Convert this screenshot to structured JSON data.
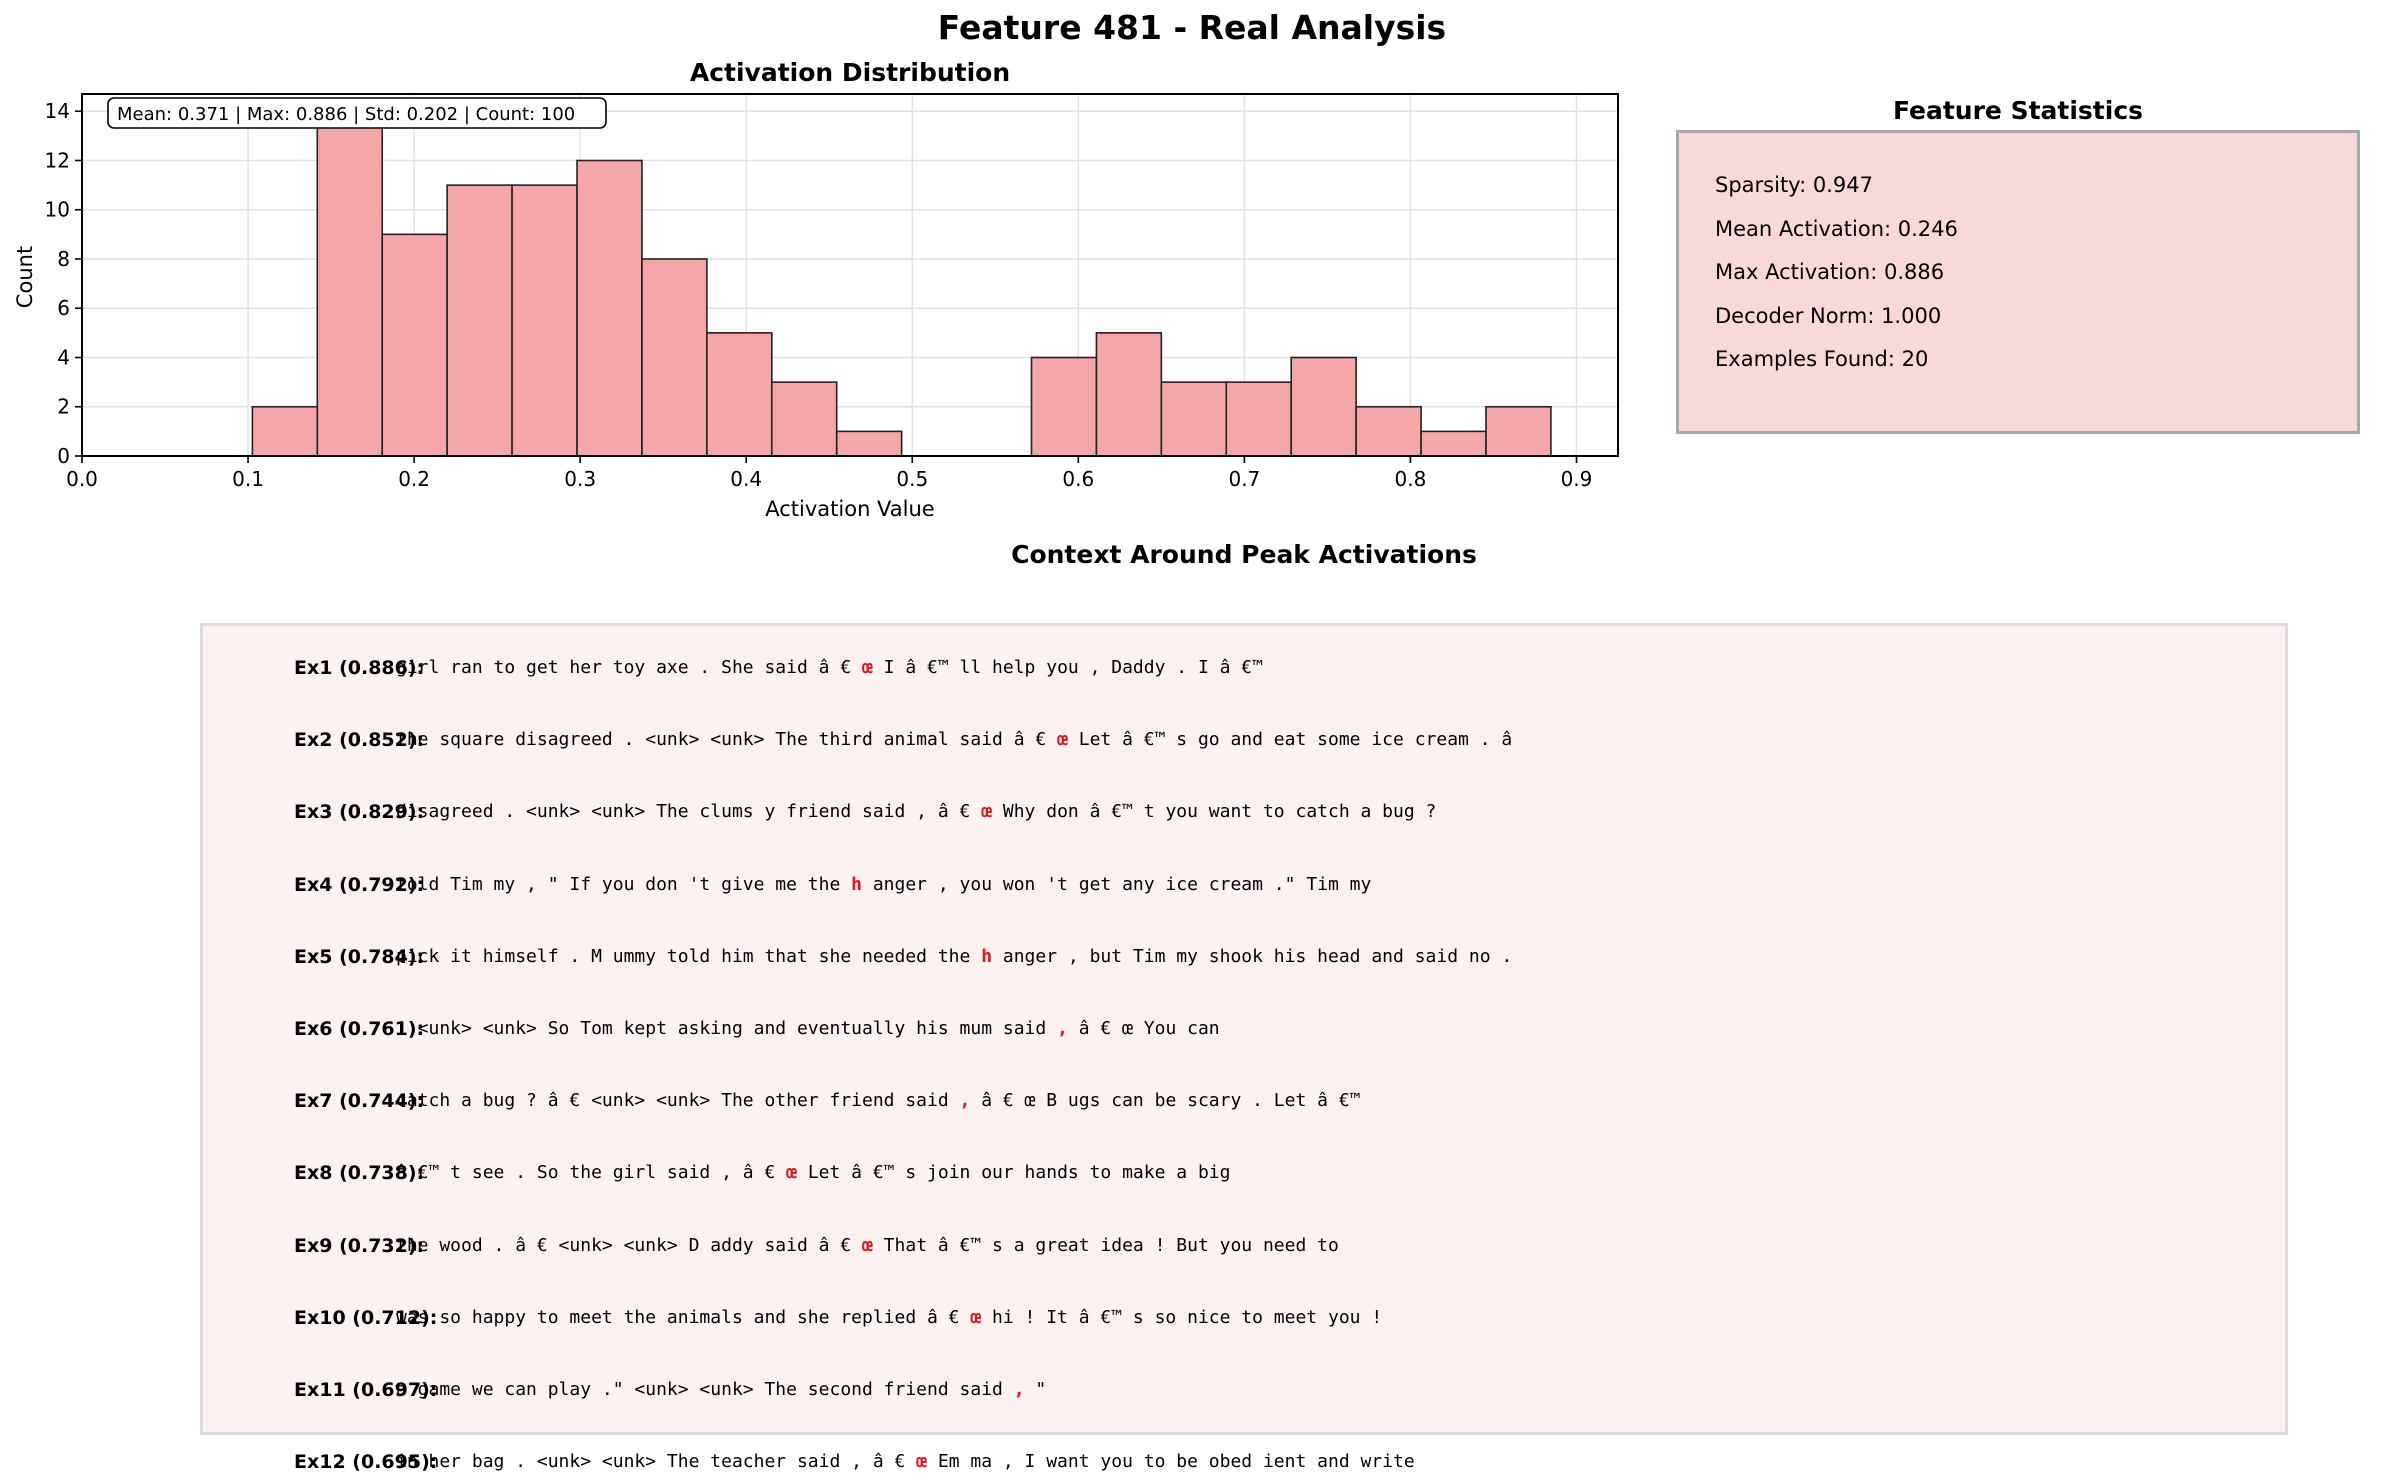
{
  "figure_title": "Feature 481 - Real Analysis",
  "chart_data": {
    "type": "bar",
    "title": "Activation Distribution",
    "xlabel": "Activation Value",
    "ylabel": "Count",
    "xlim": [
      0.0,
      0.925
    ],
    "ylim": [
      0,
      14.7
    ],
    "xticks": [
      0.0,
      0.1,
      0.2,
      0.3,
      0.4,
      0.5,
      0.6,
      0.7,
      0.8,
      0.9
    ],
    "xtick_labels": [
      "0.0",
      "0.1",
      "0.2",
      "0.3",
      "0.4",
      "0.5",
      "0.6",
      "0.7",
      "0.8",
      "0.9"
    ],
    "yticks": [
      0,
      2,
      4,
      6,
      8,
      10,
      12,
      14
    ],
    "ytick_labels": [
      "0",
      "2",
      "4",
      "6",
      "8",
      "10",
      "12",
      "14"
    ],
    "grid": true,
    "bin_edges": [
      0.1026,
      0.1417,
      0.1808,
      0.2199,
      0.259,
      0.2981,
      0.3372,
      0.3763,
      0.4154,
      0.4545,
      0.4936,
      0.5327,
      0.5718,
      0.6109,
      0.65,
      0.6891,
      0.7282,
      0.7673,
      0.8064,
      0.8455,
      0.8846
    ],
    "values": [
      2,
      14,
      9,
      11,
      11,
      12,
      8,
      5,
      3,
      1,
      0,
      0,
      4,
      5,
      3,
      3,
      4,
      2,
      1,
      2
    ],
    "bar_color": "#f4a6a8",
    "edge_color": "#222222",
    "annotation": "Mean: 0.371 | Max: 0.886 | Std: 0.202 | Count: 100"
  },
  "stats": {
    "title": "Feature Statistics",
    "lines": [
      "Sparsity: 0.947",
      "Mean Activation: 0.246",
      "Max Activation: 0.886",
      "Decoder Norm: 1.000",
      "Examples Found: 20"
    ]
  },
  "context": {
    "title": "Context Around Peak Activations",
    "highlight_color": "#e0141e",
    "examples": [
      {
        "label": "Ex1 (0.886):",
        "before": "girl ran to get her toy axe . She said â € ",
        "token": "œ",
        "after": " I â €™ ll help you , Daddy . I â €™"
      },
      {
        "label": "Ex2 (0.852):",
        "before": "the square disagreed . <unk> <unk> The third animal said â € ",
        "token": "œ",
        "after": " Let â €™ s go and eat some ice cream . â"
      },
      {
        "label": "Ex3 (0.829):",
        "before": "disagreed . <unk> <unk> The clums y friend said , â € ",
        "token": "œ",
        "after": " Why don â €™ t you want to catch a bug ?"
      },
      {
        "label": "Ex4 (0.792):",
        "before": "told Tim my , \" If you don 't give me the ",
        "token": "h",
        "after": " anger , you won 't get any ice cream .\" Tim my"
      },
      {
        "label": "Ex5 (0.784):",
        "before": "pick it himself . M ummy told him that she needed the ",
        "token": "h",
        "after": " anger , but Tim my shook his head and said no ."
      },
      {
        "label": "Ex6 (0.761):",
        "before": "! <unk> <unk> So Tom kept asking and eventually his mum said ",
        "token": ",",
        "after": " â € œ You can"
      },
      {
        "label": "Ex7 (0.744):",
        "before": "catch a bug ? â € <unk> <unk> The other friend said ",
        "token": ",",
        "after": " â € œ B ugs can be scary . Let â €™"
      },
      {
        "label": "Ex8 (0.738):",
        "before": "â €™ t see . So the girl said , â € ",
        "token": "œ",
        "after": " Let â €™ s join our hands to make a big"
      },
      {
        "label": "Ex9 (0.732):",
        "before": "the wood . â € <unk> <unk> D addy said â € ",
        "token": "œ",
        "after": " That â €™ s a great idea ! But you need to"
      },
      {
        "label": "Ex10 (0.712):",
        "before": "was so happy to meet the animals and she replied â € ",
        "token": "œ",
        "after": " hi ! It â €™ s so nice to meet you !"
      },
      {
        "label": "Ex11 (0.697):",
        "before": "a game we can play .\" <unk> <unk> The second friend said ",
        "token": ",",
        "after": " \""
      },
      {
        "label": "Ex12 (0.695):",
        "before": "in her bag . <unk> <unk> The teacher said , â € ",
        "token": "œ",
        "after": " Em ma , I want you to be obed ient and write"
      }
    ]
  }
}
